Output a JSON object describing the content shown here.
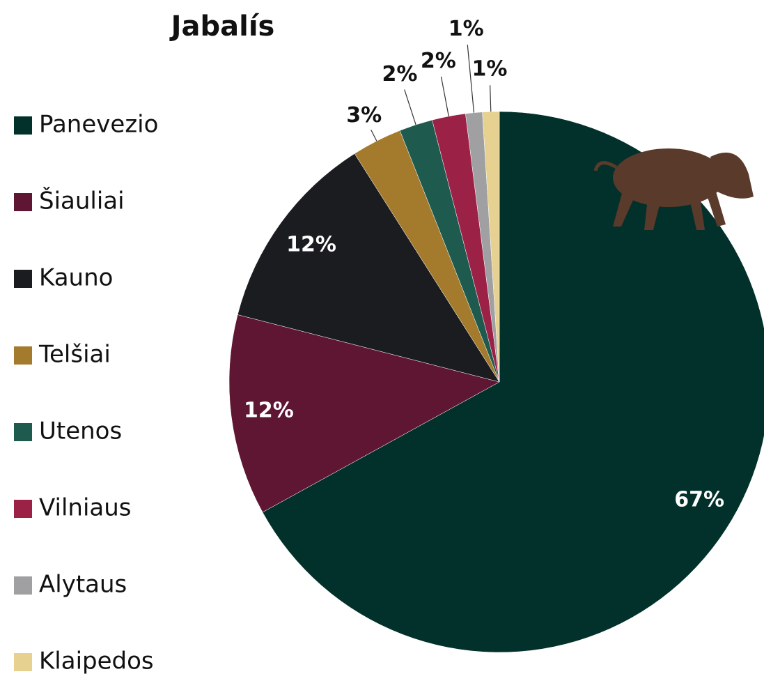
{
  "chart_data": {
    "type": "pie",
    "title": "Jabalís",
    "categories": [
      "Panevezio",
      "Šiauliai",
      "Kauno",
      "Telšiai",
      "Utenos",
      "Vilniaus",
      "Alytaus",
      "Klaipedos"
    ],
    "values": [
      67,
      12,
      12,
      3,
      2,
      2,
      1,
      1
    ],
    "value_labels": [
      "67%",
      "12%",
      "12%",
      "3%",
      "2%",
      "2%",
      "1%",
      "1%"
    ],
    "colors": [
      "#02302a",
      "#5e1632",
      "#1b1c1f",
      "#a47b2d",
      "#1e5a4e",
      "#9b2146",
      "#a0a0a2",
      "#e6d190"
    ],
    "legend": "left"
  }
}
